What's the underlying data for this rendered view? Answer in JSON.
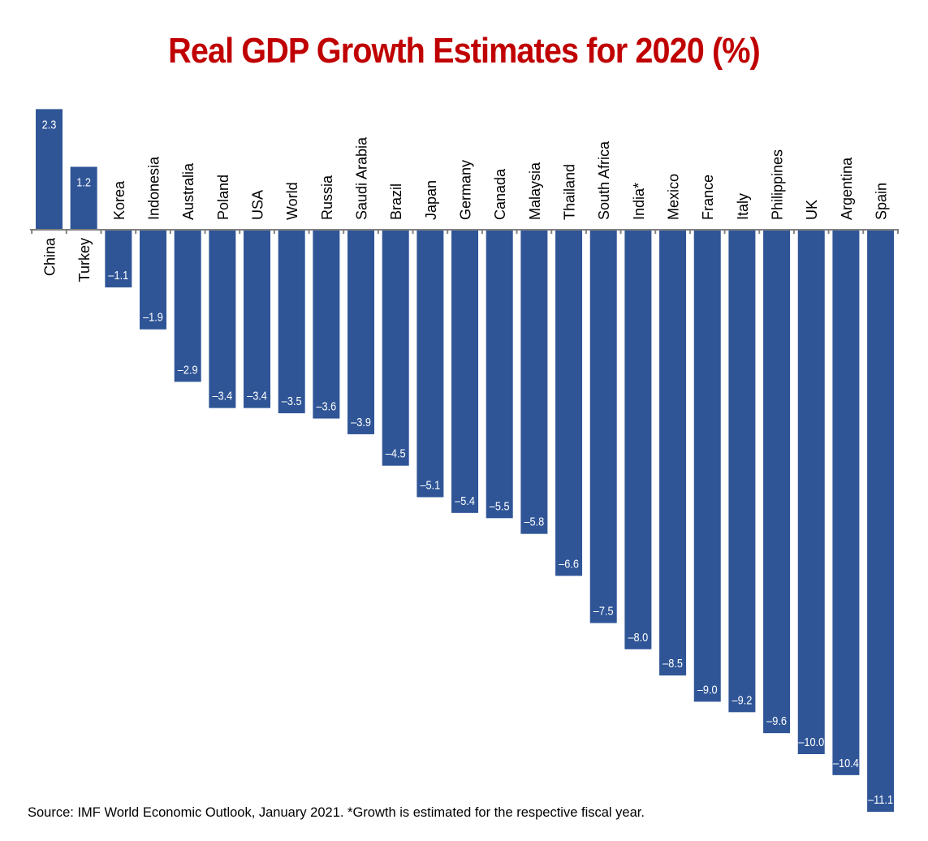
{
  "chart_data": {
    "type": "bar",
    "title": "Real GDP Growth Estimates for 2020 (%)",
    "xlabel": "",
    "ylabel": "",
    "categories": [
      "China",
      "Turkey",
      "Korea",
      "Indonesia",
      "Australia",
      "Poland",
      "USA",
      "World",
      "Russia",
      "Saudi Arabia",
      "Brazil",
      "Japan",
      "Germany",
      "Canada",
      "Malaysia",
      "Thailand",
      "South Africa",
      "India*",
      "Mexico",
      "France",
      "Italy",
      "Philippines",
      "UK",
      "Argentina",
      "Spain"
    ],
    "values": [
      2.3,
      1.2,
      -1.1,
      -1.9,
      -2.9,
      -3.4,
      -3.4,
      -3.5,
      -3.6,
      -3.9,
      -4.5,
      -5.1,
      -5.4,
      -5.5,
      -5.8,
      -6.6,
      -7.5,
      -8.0,
      -8.5,
      -9.0,
      -9.2,
      -9.6,
      -10.0,
      -10.4,
      -11.1
    ],
    "data_labels": [
      "2.3",
      "1.2",
      "–1.1",
      "–1.9",
      "–2.9",
      "–3.4",
      "–3.4",
      "–3.5",
      "–3.6",
      "–3.9",
      "–4.5",
      "–5.1",
      "–5.4",
      "–5.5",
      "–5.8",
      "–6.6",
      "–7.5",
      "–8.0",
      "–8.5",
      "–9.0",
      "–9.2",
      "–9.6",
      "–10.0",
      "–10.4",
      "–11.1"
    ],
    "ylim": [
      -11.1,
      2.3
    ],
    "grid": false,
    "legend": "none",
    "colors": {
      "bar": "#2F5597",
      "title": "#C00000",
      "axis": "#808080"
    }
  },
  "source": "Source: IMF World Economic Outlook, January 2021. *Growth is estimated for the respective fiscal year."
}
